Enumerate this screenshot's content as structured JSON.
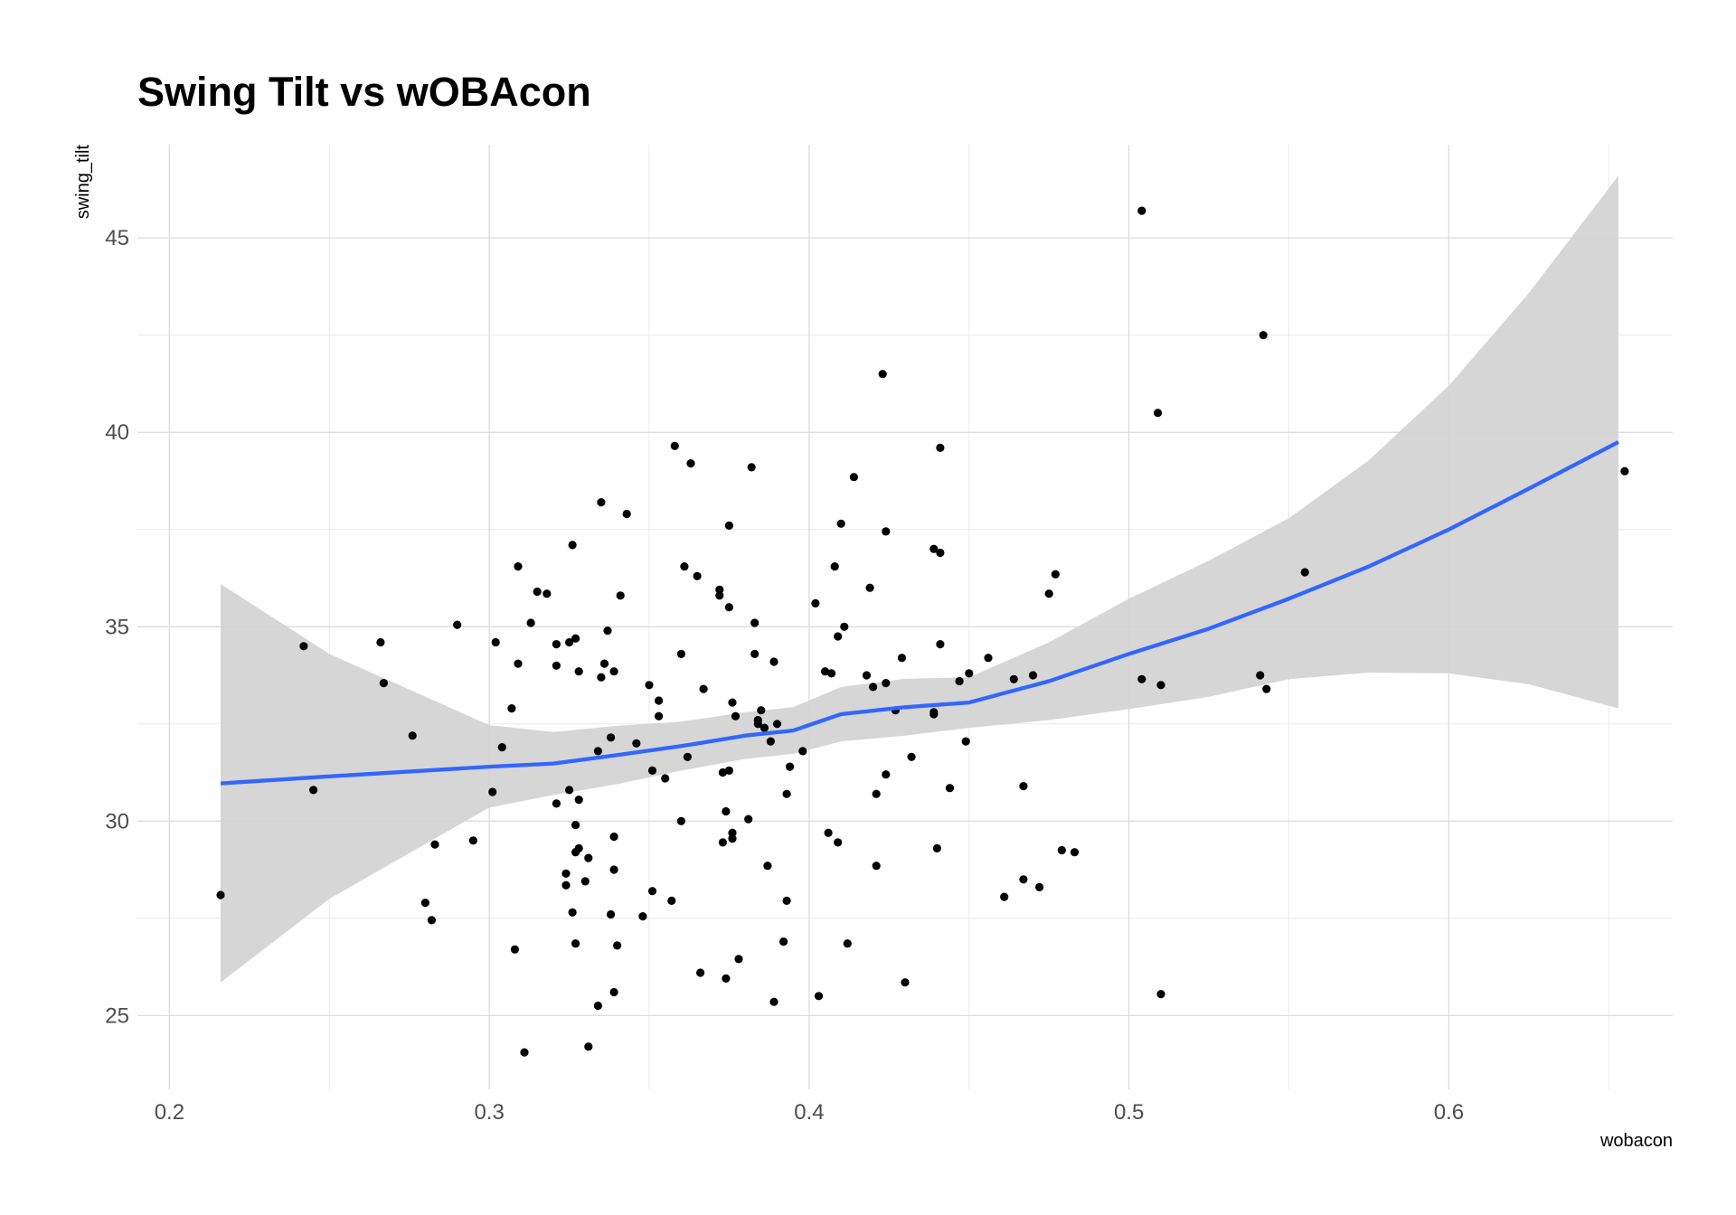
{
  "chart_data": {
    "type": "scatter",
    "title": "Swing Tilt vs wOBAcon",
    "xlabel": "wobacon",
    "ylabel": "swing_tilt",
    "xlim": [
      0.19,
      0.67
    ],
    "ylim": [
      23.1,
      47.4
    ],
    "x_ticks": [
      0.2,
      0.3,
      0.4,
      0.5,
      0.6
    ],
    "x_tick_labels": [
      "0.2",
      "0.3",
      "0.4",
      "0.5",
      "0.6"
    ],
    "y_ticks": [
      25,
      30,
      35,
      40,
      45
    ],
    "y_tick_labels": [
      "25",
      "30",
      "35",
      "40",
      "45"
    ],
    "grid": true,
    "theme": "minimal",
    "colors": {
      "points": "#000000",
      "smooth_line": "#3366FF",
      "confidence_band": "#d3d3d3",
      "grid_major": "#dadada",
      "grid_minor": "#ebebeb",
      "tick_text": "#4d4d4d"
    },
    "points": [
      [
        0.216,
        28.1
      ],
      [
        0.242,
        34.5
      ],
      [
        0.245,
        30.8
      ],
      [
        0.266,
        34.6
      ],
      [
        0.267,
        33.55
      ],
      [
        0.276,
        32.2
      ],
      [
        0.28,
        27.9
      ],
      [
        0.282,
        27.45
      ],
      [
        0.283,
        29.4
      ],
      [
        0.29,
        35.05
      ],
      [
        0.295,
        29.5
      ],
      [
        0.301,
        30.75
      ],
      [
        0.302,
        34.6
      ],
      [
        0.304,
        31.9
      ],
      [
        0.307,
        32.9
      ],
      [
        0.308,
        26.7
      ],
      [
        0.309,
        34.05
      ],
      [
        0.309,
        36.55
      ],
      [
        0.311,
        24.05
      ],
      [
        0.313,
        35.1
      ],
      [
        0.315,
        35.9
      ],
      [
        0.318,
        35.85
      ],
      [
        0.321,
        34.55
      ],
      [
        0.321,
        34.0
      ],
      [
        0.321,
        30.45
      ],
      [
        0.324,
        28.65
      ],
      [
        0.324,
        28.35
      ],
      [
        0.325,
        34.6
      ],
      [
        0.325,
        30.8
      ],
      [
        0.326,
        37.1
      ],
      [
        0.326,
        27.65
      ],
      [
        0.327,
        34.7
      ],
      [
        0.327,
        29.9
      ],
      [
        0.327,
        29.2
      ],
      [
        0.327,
        26.85
      ],
      [
        0.328,
        33.85
      ],
      [
        0.328,
        30.55
      ],
      [
        0.328,
        29.3
      ],
      [
        0.33,
        28.45
      ],
      [
        0.331,
        29.05
      ],
      [
        0.331,
        24.2
      ],
      [
        0.334,
        31.8
      ],
      [
        0.334,
        25.25
      ],
      [
        0.335,
        38.2
      ],
      [
        0.335,
        33.7
      ],
      [
        0.336,
        34.05
      ],
      [
        0.337,
        34.9
      ],
      [
        0.338,
        32.15
      ],
      [
        0.338,
        27.6
      ],
      [
        0.339,
        33.85
      ],
      [
        0.339,
        29.6
      ],
      [
        0.339,
        28.75
      ],
      [
        0.339,
        25.6
      ],
      [
        0.34,
        26.8
      ],
      [
        0.341,
        35.8
      ],
      [
        0.343,
        37.9
      ],
      [
        0.346,
        32.0
      ],
      [
        0.348,
        27.55
      ],
      [
        0.35,
        33.5
      ],
      [
        0.351,
        31.3
      ],
      [
        0.351,
        28.2
      ],
      [
        0.353,
        33.1
      ],
      [
        0.353,
        32.7
      ],
      [
        0.355,
        31.1
      ],
      [
        0.357,
        27.95
      ],
      [
        0.358,
        39.65
      ],
      [
        0.36,
        34.3
      ],
      [
        0.36,
        30.0
      ],
      [
        0.361,
        36.55
      ],
      [
        0.362,
        31.65
      ],
      [
        0.363,
        39.2
      ],
      [
        0.365,
        36.3
      ],
      [
        0.366,
        26.1
      ],
      [
        0.367,
        33.4
      ],
      [
        0.372,
        35.95
      ],
      [
        0.372,
        35.8
      ],
      [
        0.373,
        31.25
      ],
      [
        0.373,
        29.45
      ],
      [
        0.374,
        30.25
      ],
      [
        0.374,
        25.95
      ],
      [
        0.375,
        37.6
      ],
      [
        0.375,
        35.5
      ],
      [
        0.375,
        31.3
      ],
      [
        0.376,
        29.7
      ],
      [
        0.376,
        29.55
      ],
      [
        0.376,
        33.05
      ],
      [
        0.377,
        32.7
      ],
      [
        0.378,
        26.45
      ],
      [
        0.381,
        30.05
      ],
      [
        0.382,
        39.1
      ],
      [
        0.383,
        35.1
      ],
      [
        0.383,
        34.3
      ],
      [
        0.384,
        32.6
      ],
      [
        0.384,
        32.5
      ],
      [
        0.385,
        32.85
      ],
      [
        0.386,
        32.4
      ],
      [
        0.387,
        28.85
      ],
      [
        0.388,
        32.05
      ],
      [
        0.389,
        34.1
      ],
      [
        0.389,
        25.35
      ],
      [
        0.39,
        32.5
      ],
      [
        0.392,
        26.9
      ],
      [
        0.393,
        30.7
      ],
      [
        0.393,
        27.95
      ],
      [
        0.394,
        31.4
      ],
      [
        0.398,
        31.8
      ],
      [
        0.402,
        35.6
      ],
      [
        0.403,
        25.5
      ],
      [
        0.405,
        33.85
      ],
      [
        0.406,
        29.7
      ],
      [
        0.407,
        33.8
      ],
      [
        0.408,
        36.55
      ],
      [
        0.409,
        34.75
      ],
      [
        0.409,
        29.45
      ],
      [
        0.41,
        37.65
      ],
      [
        0.411,
        35.0
      ],
      [
        0.412,
        26.85
      ],
      [
        0.414,
        38.85
      ],
      [
        0.418,
        33.75
      ],
      [
        0.419,
        36.0
      ],
      [
        0.42,
        33.45
      ],
      [
        0.421,
        30.7
      ],
      [
        0.421,
        28.85
      ],
      [
        0.423,
        41.5
      ],
      [
        0.424,
        37.45
      ],
      [
        0.424,
        33.55
      ],
      [
        0.424,
        31.2
      ],
      [
        0.427,
        32.85
      ],
      [
        0.429,
        34.2
      ],
      [
        0.43,
        25.85
      ],
      [
        0.432,
        31.65
      ],
      [
        0.439,
        37.0
      ],
      [
        0.439,
        32.8
      ],
      [
        0.439,
        32.75
      ],
      [
        0.44,
        29.3
      ],
      [
        0.441,
        39.6
      ],
      [
        0.441,
        36.9
      ],
      [
        0.441,
        34.55
      ],
      [
        0.444,
        30.85
      ],
      [
        0.447,
        33.6
      ],
      [
        0.449,
        32.05
      ],
      [
        0.45,
        33.8
      ],
      [
        0.456,
        34.2
      ],
      [
        0.461,
        28.05
      ],
      [
        0.464,
        33.65
      ],
      [
        0.467,
        30.9
      ],
      [
        0.467,
        28.5
      ],
      [
        0.47,
        33.75
      ],
      [
        0.472,
        28.3
      ],
      [
        0.475,
        35.85
      ],
      [
        0.477,
        36.35
      ],
      [
        0.479,
        29.25
      ],
      [
        0.483,
        29.2
      ],
      [
        0.504,
        33.65
      ],
      [
        0.504,
        45.7
      ],
      [
        0.509,
        40.5
      ],
      [
        0.51,
        33.5
      ],
      [
        0.51,
        25.55
      ],
      [
        0.541,
        33.75
      ],
      [
        0.542,
        42.5
      ],
      [
        0.543,
        33.4
      ],
      [
        0.555,
        36.4
      ],
      [
        0.655,
        39.0
      ]
    ],
    "smooth": {
      "method": "loess",
      "x": [
        0.216,
        0.25,
        0.3,
        0.32,
        0.34,
        0.36,
        0.38,
        0.395,
        0.41,
        0.43,
        0.45,
        0.475,
        0.5,
        0.525,
        0.55,
        0.575,
        0.6,
        0.625,
        0.653
      ],
      "y": [
        30.97,
        31.15,
        31.4,
        31.48,
        31.7,
        31.93,
        32.2,
        32.33,
        32.75,
        32.93,
        33.05,
        33.6,
        34.3,
        34.95,
        35.72,
        36.55,
        37.5,
        38.55,
        39.75
      ],
      "ymin": [
        25.85,
        28.0,
        30.35,
        30.67,
        30.95,
        31.3,
        31.6,
        31.73,
        32.05,
        32.2,
        32.4,
        32.6,
        32.88,
        33.2,
        33.65,
        33.82,
        33.8,
        33.52,
        32.9
      ],
      "ymax": [
        36.1,
        34.3,
        32.47,
        32.29,
        32.45,
        32.56,
        32.8,
        32.93,
        33.45,
        33.66,
        33.7,
        34.6,
        35.72,
        36.7,
        37.79,
        39.28,
        41.2,
        43.58,
        46.6
      ]
    }
  }
}
